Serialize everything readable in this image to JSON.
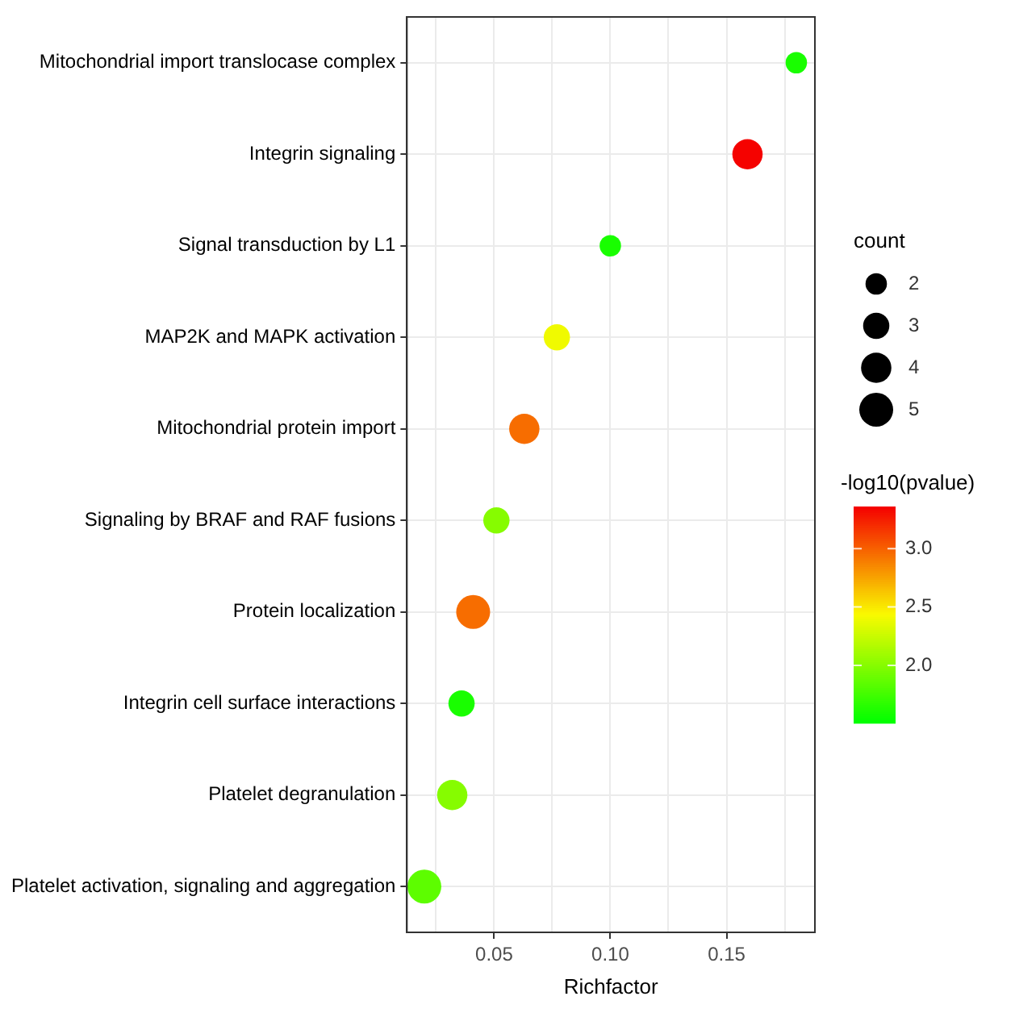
{
  "chart_data": {
    "type": "bubble",
    "orientation": "horizontal",
    "xlabel": "Richfactor",
    "categories": [
      "Mitochondrial import translocase complex",
      "Integrin signaling",
      "Signal transduction by L1",
      "MAP2K and MAPK activation",
      "Mitochondrial protein import",
      "Signaling by BRAF and RAF fusions",
      "Protein localization",
      "Integrin cell surface interactions",
      "Platelet degranulation",
      "Platelet activation, signaling and aggregation"
    ],
    "values": [
      0.18,
      0.159,
      0.1,
      0.077,
      0.063,
      0.051,
      0.041,
      0.036,
      0.032,
      0.02
    ],
    "sizes": [
      2,
      4,
      2,
      3,
      4,
      3,
      5,
      3,
      4,
      5
    ],
    "cvalues": [
      1.6,
      3.35,
      1.6,
      2.4,
      2.95,
      2.0,
      2.95,
      1.6,
      2.0,
      1.85
    ],
    "legend_title": "count",
    "size_legend": [
      2,
      3,
      4,
      5
    ],
    "clabel": "-log10(pvalue)",
    "clim": [
      1.51,
      3.36
    ],
    "cticks": [
      {
        "value": 2,
        "label": "2.0"
      },
      2.5,
      {
        "value": 3,
        "label": "3.0"
      }
    ],
    "xlim": [
      0.0125,
      0.188
    ],
    "xticks": [
      {
        "value": 0.025,
        "label": null
      },
      {
        "value": 0.05,
        "label": "0.05"
      },
      {
        "value": 0.075,
        "label": null
      },
      {
        "value": 0.1,
        "label": "0.10"
      },
      {
        "value": 0.125,
        "label": null
      },
      {
        "value": 0.15,
        "label": "0.15"
      },
      {
        "value": 0.175,
        "label": null
      }
    ],
    "grid": true
  }
}
